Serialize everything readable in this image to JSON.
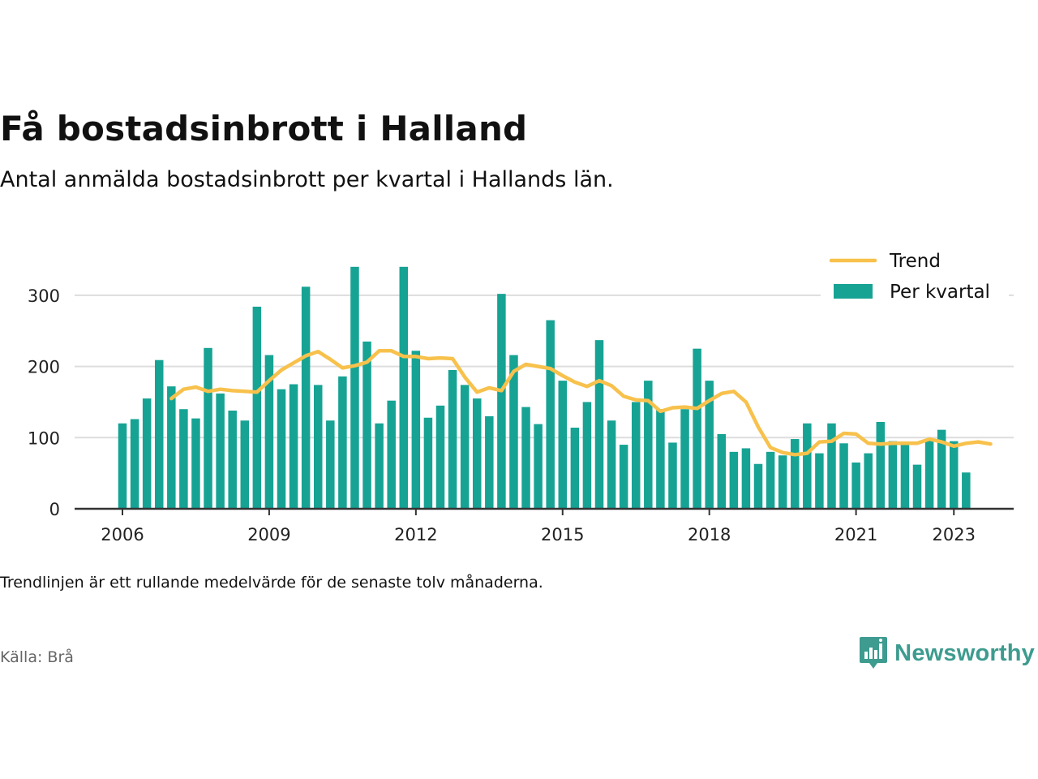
{
  "title": "Få bostadsinbrott i Halland",
  "subtitle": "Antal anmälda bostadsinbrott per kvartal i Hallands län.",
  "note": "Trendlinjen är ett rullande medelvärde för de senaste tolv månaderna.",
  "source": "Källa: Brå",
  "brand": {
    "name": "Newsworthy",
    "icon": "newsworthy-logo-icon",
    "color": "#3d9b8f"
  },
  "chart_data": {
    "type": "bar",
    "x_start": "2006 Q1",
    "x_ticks": [
      "2006",
      "2009",
      "2012",
      "2015",
      "2018",
      "2021",
      "2023"
    ],
    "y_ticks": [
      0,
      100,
      200,
      300
    ],
    "ylim": [
      0,
      370
    ],
    "grid": true,
    "legend_position": "top-right",
    "colors": {
      "bars": "#16a394",
      "trend": "#f7c14c",
      "grid": "#dddddd",
      "axis": "#333333"
    },
    "legend": [
      {
        "label": "Trend",
        "kind": "line"
      },
      {
        "label": "Per kvartal",
        "kind": "bar"
      }
    ],
    "series": [
      {
        "name": "Per kvartal",
        "values": [
          120,
          126,
          155,
          209,
          172,
          140,
          127,
          226,
          162,
          138,
          124,
          284,
          216,
          168,
          175,
          312,
          174,
          124,
          186,
          340,
          235,
          120,
          152,
          340,
          222,
          128,
          145,
          195,
          174,
          155,
          130,
          302,
          216,
          143,
          119,
          265,
          180,
          114,
          150,
          237,
          124,
          90,
          150,
          180,
          140,
          93,
          140,
          225,
          180,
          105,
          80,
          85,
          63,
          80,
          75,
          98,
          120,
          78,
          120,
          92,
          65,
          78,
          122,
          95,
          90,
          62,
          98,
          111,
          95,
          51
        ]
      },
      {
        "name": "Trend",
        "start_index": 4,
        "values": [
          155,
          168,
          171,
          165,
          168,
          166,
          165,
          164,
          180,
          195,
          205,
          215,
          221,
          210,
          198,
          201,
          206,
          222,
          222,
          214,
          214,
          211,
          212,
          211,
          185,
          164,
          170,
          166,
          193,
          203,
          200,
          197,
          187,
          178,
          172,
          180,
          173,
          158,
          153,
          152,
          137,
          142,
          143,
          141,
          152,
          162,
          165,
          150,
          115,
          86,
          79,
          76,
          78,
          94,
          95,
          106,
          105,
          92,
          91,
          92,
          92,
          92,
          98,
          94,
          88,
          92,
          94,
          91
        ]
      }
    ]
  }
}
